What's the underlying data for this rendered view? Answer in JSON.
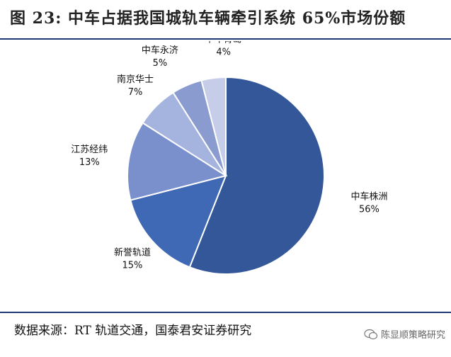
{
  "header": {
    "title": "图 23: 中车占据我国城轨车辆牵引系统 65%市场份额"
  },
  "footer": {
    "source": "数据来源：RT 轨道交通，国泰君安证券研究",
    "watermark": "陈显顺策略研究"
  },
  "chart_data": {
    "type": "pie",
    "title": "图 23: 中车占据我国城轨车辆牵引系统 65%市场份额",
    "categories": [
      "中车株洲",
      "新誉轨道",
      "江苏经纬",
      "南京华士",
      "中车永济",
      "中车青岛"
    ],
    "values": [
      56,
      15,
      13,
      7,
      5,
      4
    ],
    "value_labels": [
      "56%",
      "15%",
      "13%",
      "7%",
      "5%",
      "4%"
    ],
    "colors": [
      "#34579a",
      "#3f69b5",
      "#7a90cd",
      "#a5b4de",
      "#8a9bcf",
      "#c6cde9"
    ],
    "legend": "none",
    "start": "12 o'clock, clockwise"
  }
}
